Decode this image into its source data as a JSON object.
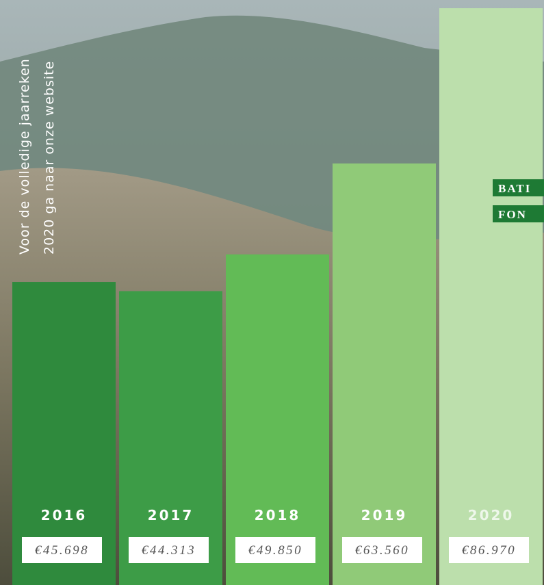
{
  "chart_data": {
    "type": "bar",
    "categories": [
      "2016",
      "2017",
      "2018",
      "2019",
      "2020"
    ],
    "values": [
      45698,
      44313,
      49850,
      63560,
      86970
    ],
    "value_labels": [
      "€45.698",
      "€44.313",
      "€49.850",
      "€63.560",
      "€86.970"
    ],
    "colors": [
      "#2f8a3d",
      "#3d9c47",
      "#62bb56",
      "#90ca78",
      "#bcdfac"
    ]
  },
  "side_text": [
    "Voor de volledige jaarreken",
    "2020 ga naar onze website"
  ],
  "logo": [
    "BATI",
    "FON"
  ]
}
